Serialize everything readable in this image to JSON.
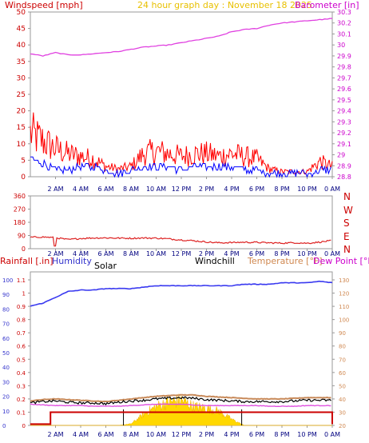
{
  "header": {
    "windspeed_label": "Windspeed [mph]",
    "title": "24 hour graph day : November 18 2025",
    "barometer_label": "Barometer [in]"
  },
  "x_ticks": [
    "2 AM",
    "4 AM",
    "6 AM",
    "8 AM",
    "10 AM",
    "12 PM",
    "2 PM",
    "4 PM",
    "6 PM",
    "8 PM",
    "10 PM",
    "0 AM"
  ],
  "wind_dir_labels": [
    "N",
    "W",
    "S",
    "E",
    "N"
  ],
  "bottom_labels": {
    "rainfall": "Rainfall [.in]",
    "humidity": "Humidity",
    "solar": "Solar",
    "windchill": "Windchill",
    "temperature": "Temperature [°F]",
    "dewpoint": "Dew Point [°F]"
  },
  "colors": {
    "wind_speed": "#ff0000",
    "wind_gust_avg": "#0000ff",
    "barometer": "#e040e0",
    "wind_dir": "#dd2222",
    "humidity": "#3a3af0",
    "temperature": "#c88a5a",
    "dewpoint": "#e050e0",
    "windchill": "#000000",
    "rain": "#cc0000",
    "solar": "#ffd800"
  },
  "chart_data": [
    {
      "type": "line",
      "title": "24 hour graph day : November 18 2025",
      "ylabel": "Windspeed [mph]",
      "ylim": [
        0,
        50
      ],
      "y_ticks": [
        0,
        5,
        10,
        15,
        20,
        25,
        30,
        35,
        40,
        45,
        50
      ],
      "y2label": "Barometer [in]",
      "y2lim": [
        28.8,
        30.3
      ],
      "y2_ticks": [
        "28.8",
        "28.9",
        "29",
        "29.1",
        "29.2",
        "29.3",
        "29.4",
        "29.5",
        "29.6",
        "29.7",
        "29.8",
        "29.9",
        "30",
        "30.1",
        "30.2",
        "30.3"
      ],
      "x_hours": [
        0,
        1,
        2,
        3,
        4,
        5,
        6,
        7,
        8,
        9,
        10,
        11,
        12,
        13,
        14,
        15,
        16,
        17,
        18,
        19,
        20,
        21,
        22,
        23,
        24
      ],
      "series": [
        {
          "axis": "left",
          "values": [
            17,
            14,
            11,
            9,
            8,
            7,
            4,
            3,
            4,
            9,
            10,
            9,
            8,
            9,
            9,
            8,
            9,
            8,
            7,
            3,
            2,
            2,
            2,
            6,
            4
          ]
        },
        {
          "axis": "left",
          "values": [
            6,
            4,
            2,
            2,
            3,
            3,
            2,
            1,
            2,
            3,
            3,
            3,
            2,
            3,
            3,
            3,
            3,
            2,
            2,
            1,
            1,
            1,
            1,
            2,
            2
          ]
        },
        {
          "axis": "right",
          "values": [
            29.92,
            29.9,
            29.93,
            29.91,
            29.91,
            29.92,
            29.93,
            29.94,
            29.96,
            29.98,
            29.99,
            30.0,
            30.02,
            30.04,
            30.06,
            30.08,
            30.12,
            30.14,
            30.15,
            30.18,
            30.2,
            30.21,
            30.22,
            30.23,
            30.24
          ]
        }
      ]
    },
    {
      "type": "line",
      "ylim": [
        0,
        360
      ],
      "y_ticks": [
        0,
        90,
        180,
        270,
        360
      ],
      "x_hours": [
        0,
        1,
        2,
        3,
        4,
        5,
        6,
        7,
        8,
        9,
        10,
        11,
        12,
        13,
        14,
        15,
        16,
        17,
        18,
        19,
        20,
        21,
        22,
        23,
        24
      ],
      "series": [
        {
          "values": [
            78,
            80,
            75,
            62,
            70,
            73,
            74,
            72,
            71,
            73,
            72,
            67,
            60,
            54,
            46,
            40,
            42,
            44,
            43,
            40,
            38,
            41,
            37,
            45,
            55
          ]
        }
      ]
    },
    {
      "type": "line",
      "y_left_ticks": [
        0,
        10,
        20,
        30,
        40,
        50,
        60,
        70,
        80,
        90,
        100
      ],
      "y_rain_ticks": [
        "0",
        "0.1",
        "0.2",
        "0.3",
        "0.4",
        "0.5",
        "0.6",
        "0.7",
        "0.8",
        "0.9",
        "1",
        "1.1"
      ],
      "y_temp_ticks": [
        20,
        30,
        40,
        50,
        60,
        70,
        80,
        90,
        100,
        110,
        120,
        130
      ],
      "x_hours": [
        0,
        1,
        2,
        3,
        4,
        5,
        6,
        7,
        8,
        9,
        10,
        11,
        12,
        13,
        14,
        15,
        16,
        17,
        18,
        19,
        20,
        21,
        22,
        23,
        24
      ],
      "series": [
        {
          "axis": "humidity",
          "values": [
            82,
            84,
            88,
            92,
            93,
            93,
            94,
            94,
            94,
            95,
            96,
            96,
            96,
            96,
            96,
            96,
            96,
            97,
            97,
            97,
            98,
            98,
            98,
            99,
            98
          ]
        },
        {
          "axis": "temp",
          "values": [
            38.5,
            39.5,
            40,
            39.5,
            39,
            38.5,
            38,
            39,
            40,
            41,
            42,
            42.5,
            43,
            43,
            42,
            41.5,
            41,
            40.5,
            40,
            40,
            40,
            40.5,
            41,
            41,
            41
          ]
        },
        {
          "axis": "temp",
          "values": [
            36,
            35.5,
            35,
            35,
            35,
            34.5,
            34.5,
            34.5,
            35,
            35.5,
            36,
            36,
            36,
            35.5,
            35,
            35,
            35,
            35,
            35,
            34.5,
            34.5,
            34.5,
            35,
            35,
            35
          ]
        },
        {
          "axis": "temp",
          "values": [
            37,
            38,
            38.5,
            37.5,
            37,
            37,
            36.5,
            37.5,
            38.5,
            39,
            40,
            40.5,
            41,
            40.5,
            39.5,
            39,
            38.5,
            38,
            38,
            38,
            38,
            38.5,
            39,
            39,
            39
          ]
        },
        {
          "axis": "rain",
          "values": [
            0.02,
            0.1,
            0.1,
            0.1,
            0.1,
            0.1,
            0.1,
            0.1,
            0.1,
            0.1,
            0.1,
            0.1,
            0.1,
            0.1,
            0.1,
            0.1,
            0.1,
            0.1,
            0.1,
            0.1,
            0.1,
            0.1,
            0.1,
            0.1,
            0.1
          ]
        },
        {
          "axis": "solar",
          "values": [
            0,
            0,
            0,
            0,
            0,
            0,
            0,
            0,
            0.05,
            0.35,
            0.6,
            0.75,
            0.8,
            0.6,
            0.55,
            0.45,
            0.2,
            0,
            0,
            0,
            0,
            0,
            0,
            0,
            0
          ]
        }
      ]
    }
  ]
}
